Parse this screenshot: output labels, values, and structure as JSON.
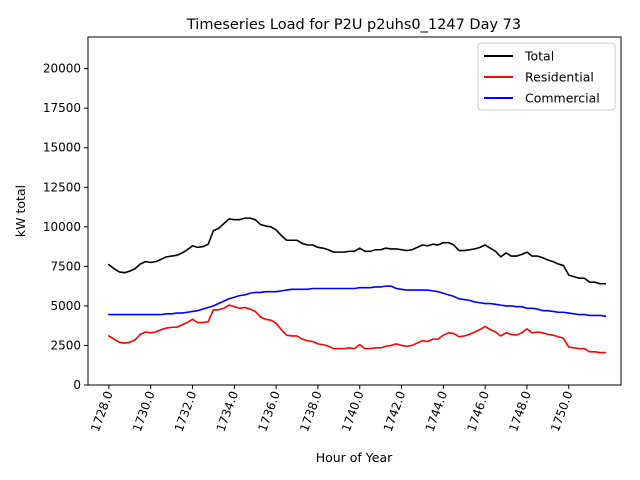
{
  "chart_data": {
    "type": "line",
    "title": "Timeseries Load for P2U p2uhs0_1247  Day 73",
    "xlabel": "Hour of Year",
    "ylabel": "kW total",
    "xlim": [
      1727.0,
      1752.5
    ],
    "ylim": [
      0,
      22000
    ],
    "x_ticks": [
      1728,
      1730,
      1732,
      1734,
      1736,
      1738,
      1740,
      1742,
      1744,
      1746,
      1748,
      1750
    ],
    "x_tick_labels": [
      "1728.0",
      "1730.0",
      "1732.0",
      "1734.0",
      "1736.0",
      "1738.0",
      "1740.0",
      "1742.0",
      "1744.0",
      "1746.0",
      "1748.0",
      "1750.0"
    ],
    "y_ticks": [
      0,
      2500,
      5000,
      7500,
      10000,
      12500,
      15000,
      17500,
      20000
    ],
    "y_tick_labels": [
      "0",
      "2500",
      "5000",
      "7500",
      "10000",
      "12500",
      "15000",
      "17500",
      "20000"
    ],
    "legend_position": "top-right",
    "x_start": 1728.0,
    "x_step": 0.25,
    "series": [
      {
        "name": "Total",
        "color": "#000000",
        "values": [
          7600,
          7350,
          7150,
          7100,
          7200,
          7350,
          7650,
          7800,
          7750,
          7800,
          7950,
          8100,
          8150,
          8200,
          8350,
          8550,
          8800,
          8700,
          8750,
          8900,
          9750,
          9900,
          10200,
          10500,
          10450,
          10450,
          10550,
          10550,
          10450,
          10150,
          10050,
          10000,
          9800,
          9450,
          9150,
          9150,
          9150,
          8950,
          8850,
          8850,
          8700,
          8650,
          8550,
          8400,
          8400,
          8400,
          8450,
          8450,
          8650,
          8450,
          8450,
          8550,
          8550,
          8650,
          8600,
          8600,
          8550,
          8500,
          8550,
          8700,
          8850,
          8800,
          8900,
          8850,
          9000,
          9000,
          8850,
          8500,
          8500,
          8550,
          8600,
          8700,
          8850,
          8650,
          8450,
          8100,
          8350,
          8150,
          8150,
          8250,
          8400,
          8150,
          8150,
          8050,
          7900,
          7800,
          7650,
          7550,
          6950,
          6850,
          6750,
          6750,
          6500,
          6500,
          6400,
          6400
        ]
      },
      {
        "name": "Residential",
        "color": "#ff0000",
        "values": [
          3100,
          2900,
          2700,
          2650,
          2700,
          2850,
          3200,
          3350,
          3300,
          3350,
          3500,
          3600,
          3650,
          3650,
          3800,
          3950,
          4150,
          3950,
          3950,
          4000,
          4750,
          4750,
          4850,
          5050,
          4950,
          4850,
          4900,
          4800,
          4650,
          4300,
          4150,
          4100,
          3900,
          3500,
          3150,
          3100,
          3100,
          2900,
          2800,
          2750,
          2600,
          2550,
          2450,
          2300,
          2300,
          2300,
          2350,
          2300,
          2550,
          2300,
          2300,
          2350,
          2350,
          2450,
          2500,
          2600,
          2500,
          2450,
          2500,
          2650,
          2800,
          2750,
          2900,
          2900,
          3150,
          3300,
          3250,
          3050,
          3100,
          3200,
          3350,
          3500,
          3700,
          3500,
          3350,
          3100,
          3300,
          3200,
          3150,
          3300,
          3550,
          3300,
          3350,
          3300,
          3200,
          3150,
          3050,
          2950,
          2400,
          2350,
          2300,
          2300,
          2100,
          2100,
          2050,
          2050
        ]
      },
      {
        "name": "Commercial",
        "color": "#0000ff",
        "values": [
          4450,
          4450,
          4450,
          4450,
          4450,
          4450,
          4450,
          4450,
          4450,
          4450,
          4450,
          4500,
          4500,
          4550,
          4550,
          4600,
          4650,
          4700,
          4800,
          4900,
          5000,
          5150,
          5300,
          5450,
          5550,
          5650,
          5700,
          5800,
          5850,
          5850,
          5900,
          5900,
          5900,
          5950,
          6000,
          6050,
          6050,
          6050,
          6050,
          6100,
          6100,
          6100,
          6100,
          6100,
          6100,
          6100,
          6100,
          6100,
          6150,
          6150,
          6150,
          6200,
          6200,
          6250,
          6250,
          6100,
          6050,
          6000,
          6000,
          6000,
          6000,
          6000,
          5950,
          5900,
          5800,
          5700,
          5600,
          5450,
          5400,
          5350,
          5250,
          5200,
          5150,
          5150,
          5100,
          5050,
          5000,
          5000,
          4950,
          4950,
          4850,
          4850,
          4800,
          4700,
          4700,
          4650,
          4600,
          4600,
          4550,
          4500,
          4450,
          4450,
          4400,
          4400,
          4400,
          4350
        ]
      }
    ]
  }
}
